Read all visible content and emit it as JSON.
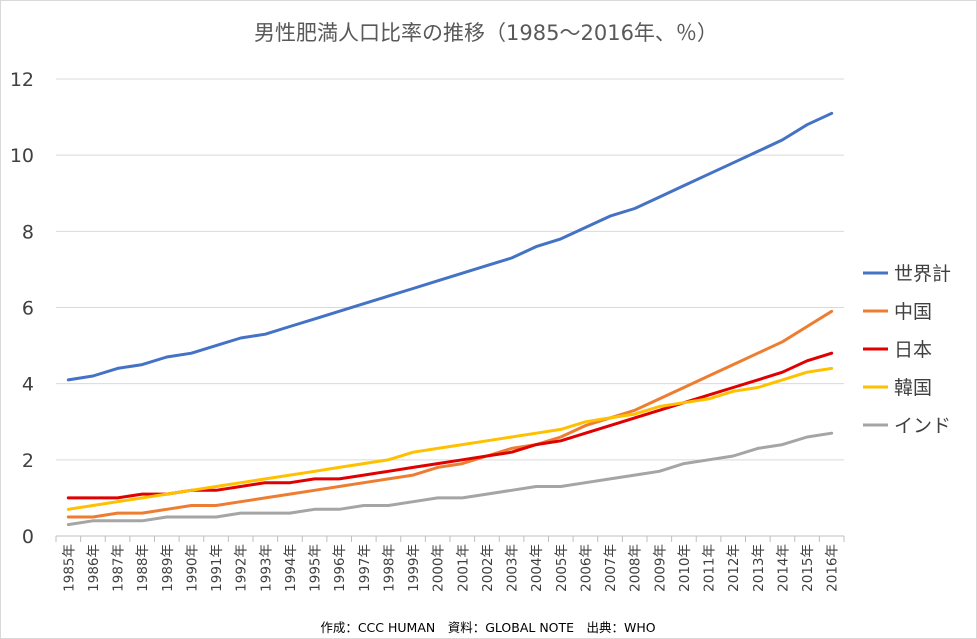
{
  "chart_data": {
    "type": "line",
    "title": "男性肥満人口比率の推移（1985～2016年、％）",
    "x": [
      "1985年",
      "1986年",
      "1987年",
      "1988年",
      "1989年",
      "1990年",
      "1991年",
      "1992年",
      "1993年",
      "1994年",
      "1995年",
      "1996年",
      "1997年",
      "1998年",
      "1999年",
      "2000年",
      "2001年",
      "2002年",
      "2003年",
      "2004年",
      "2005年",
      "2006年",
      "2007年",
      "2008年",
      "2009年",
      "2010年",
      "2011年",
      "2012年",
      "2013年",
      "2014年",
      "2015年",
      "2016年"
    ],
    "yticks": [
      "0",
      "2",
      "4",
      "6",
      "8",
      "10",
      "12"
    ],
    "ylim": [
      0,
      12
    ],
    "grid": true,
    "legend_position": "right",
    "series": [
      {
        "name": "世界計",
        "color": "#4472c4",
        "values": [
          4.1,
          4.2,
          4.4,
          4.5,
          4.7,
          4.8,
          5.0,
          5.2,
          5.3,
          5.5,
          5.7,
          5.9,
          6.1,
          6.3,
          6.5,
          6.7,
          6.9,
          7.1,
          7.3,
          7.6,
          7.8,
          8.1,
          8.4,
          8.6,
          8.9,
          9.2,
          9.5,
          9.8,
          10.1,
          10.4,
          10.8,
          11.1
        ]
      },
      {
        "name": "中国",
        "color": "#ed7d31",
        "values": [
          0.5,
          0.5,
          0.6,
          0.6,
          0.7,
          0.8,
          0.8,
          0.9,
          1.0,
          1.1,
          1.2,
          1.3,
          1.4,
          1.5,
          1.6,
          1.8,
          1.9,
          2.1,
          2.3,
          2.4,
          2.6,
          2.9,
          3.1,
          3.3,
          3.6,
          3.9,
          4.2,
          4.5,
          4.8,
          5.1,
          5.5,
          5.9
        ]
      },
      {
        "name": "日本",
        "color": "#e00000",
        "values": [
          1.0,
          1.0,
          1.0,
          1.1,
          1.1,
          1.2,
          1.2,
          1.3,
          1.4,
          1.4,
          1.5,
          1.5,
          1.6,
          1.7,
          1.8,
          1.9,
          2.0,
          2.1,
          2.2,
          2.4,
          2.5,
          2.7,
          2.9,
          3.1,
          3.3,
          3.5,
          3.7,
          3.9,
          4.1,
          4.3,
          4.6,
          4.8
        ]
      },
      {
        "name": "韓国",
        "color": "#ffc000",
        "values": [
          0.7,
          0.8,
          0.9,
          1.0,
          1.1,
          1.2,
          1.3,
          1.4,
          1.5,
          1.6,
          1.7,
          1.8,
          1.9,
          2.0,
          2.2,
          2.3,
          2.4,
          2.5,
          2.6,
          2.7,
          2.8,
          3.0,
          3.1,
          3.2,
          3.4,
          3.5,
          3.6,
          3.8,
          3.9,
          4.1,
          4.3,
          4.4
        ]
      },
      {
        "name": "インド",
        "color": "#a5a5a5",
        "values": [
          0.3,
          0.4,
          0.4,
          0.4,
          0.5,
          0.5,
          0.5,
          0.6,
          0.6,
          0.6,
          0.7,
          0.7,
          0.8,
          0.8,
          0.9,
          1.0,
          1.0,
          1.1,
          1.2,
          1.3,
          1.3,
          1.4,
          1.5,
          1.6,
          1.7,
          1.9,
          2.0,
          2.1,
          2.3,
          2.4,
          2.6,
          2.7
        ]
      }
    ]
  },
  "credit": "作成：CCC HUMAN　資料：GLOBAL NOTE　出典：WHO"
}
